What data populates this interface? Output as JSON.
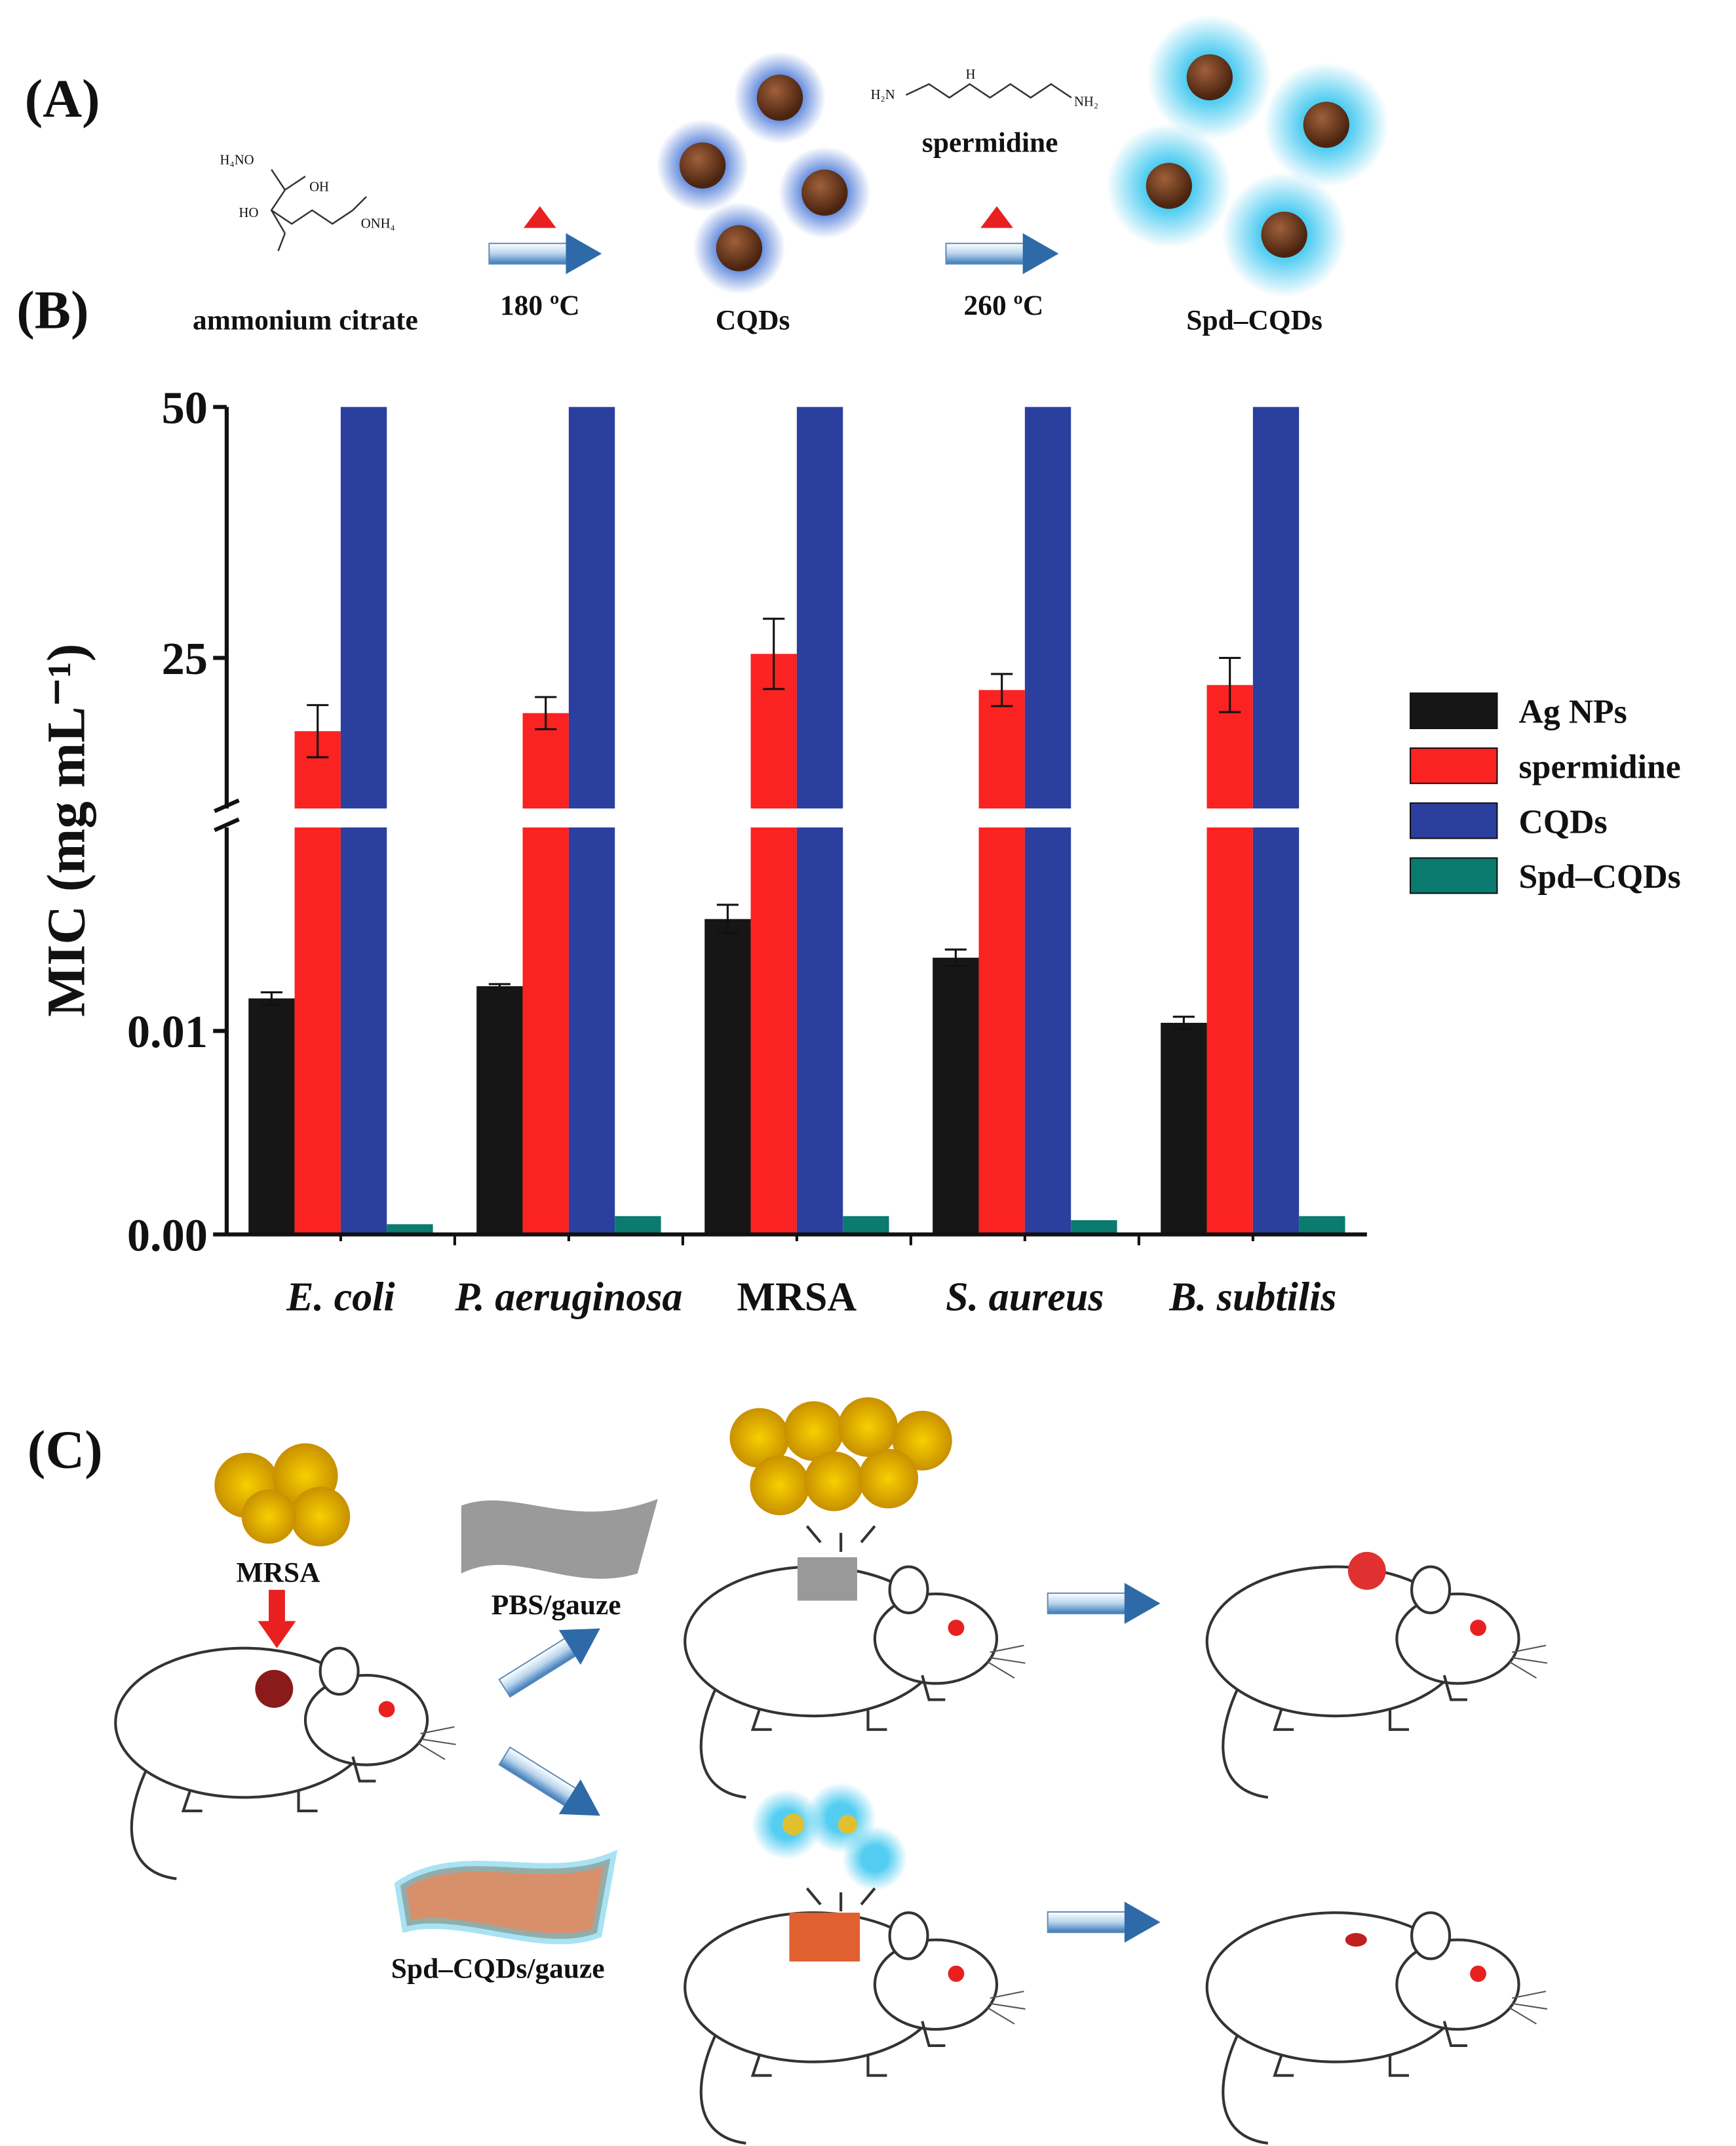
{
  "panel_a": {
    "label": "(A)",
    "reactant": "ammonium citrate",
    "step1": "180 ºC",
    "intermediate": "CQDs",
    "reagent": "spermidine",
    "step2": "260 ºC",
    "product": "Spd–CQDs",
    "citrate_groups": [
      "H₄NO",
      "OH",
      "HO",
      "ONH₄"
    ],
    "spermidine_groups": [
      "H₂N",
      "H",
      "NH₂"
    ]
  },
  "panel_b": {
    "label": "(B)"
  },
  "chart_data": {
    "type": "bar",
    "y_label": "MIC (mg mL⁻¹)",
    "categories": [
      "E. coli",
      "P. aeruginosa",
      "MRSA",
      "S. aureus",
      "B. subtilis"
    ],
    "category_italic": [
      true,
      true,
      false,
      true,
      true
    ],
    "axis_break": true,
    "y_segments": [
      {
        "ylim": [
          0,
          0.02
        ],
        "yticks": [
          {
            "value": 0,
            "label": "0.00"
          },
          0.01
        ]
      },
      {
        "ylim": [
          10,
          50
        ],
        "yticks": [
          25,
          50
        ]
      }
    ],
    "legend_position": "right",
    "series": [
      {
        "name": "Ag NPs",
        "color": "#161616",
        "values": [
          0.0116,
          0.0122,
          0.0155,
          0.0136,
          0.0104
        ],
        "errors": [
          0.0003,
          0.0001,
          0.0007,
          0.0004,
          0.0003
        ]
      },
      {
        "name": "spermidine",
        "color": "#fb2222",
        "values": [
          17.7,
          19.5,
          25.4,
          21.8,
          22.3
        ],
        "errors": [
          2.6,
          1.6,
          3.5,
          1.6,
          2.7
        ]
      },
      {
        "name": "CQDs",
        "color": "#2b3f9f",
        "values": [
          50,
          50,
          50,
          50,
          50
        ]
      },
      {
        "name": "Spd–CQDs",
        "color": "#0b7a6f",
        "values": [
          0.0005,
          0.0009,
          0.0009,
          0.0007,
          0.0009
        ]
      }
    ]
  },
  "panel_c": {
    "label": "(C)",
    "bacteria": "MRSA",
    "control": "PBS/gauze",
    "treatment": "Spd–CQDs/gauze"
  }
}
